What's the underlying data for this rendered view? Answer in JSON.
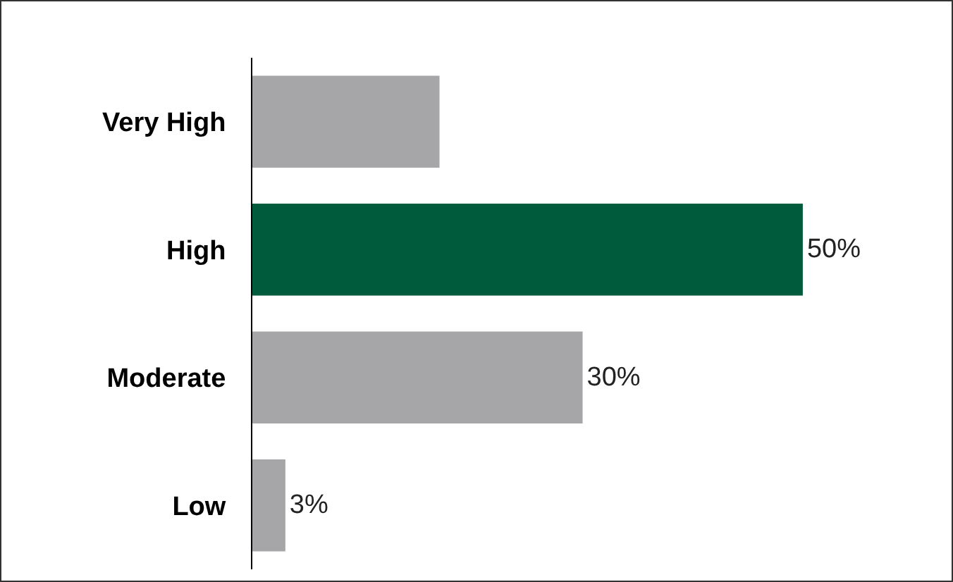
{
  "chart_data": {
    "type": "bar",
    "orientation": "horizontal",
    "categories": [
      "Very High",
      "High",
      "Moderate",
      "Low"
    ],
    "values": [
      17,
      50,
      30,
      3
    ],
    "colors": [
      "#a6a6a8",
      "#005a3c",
      "#a6a6a8",
      "#a6a6a8"
    ],
    "value_labels": [
      null,
      "50%",
      "30%",
      "3%"
    ]
  }
}
